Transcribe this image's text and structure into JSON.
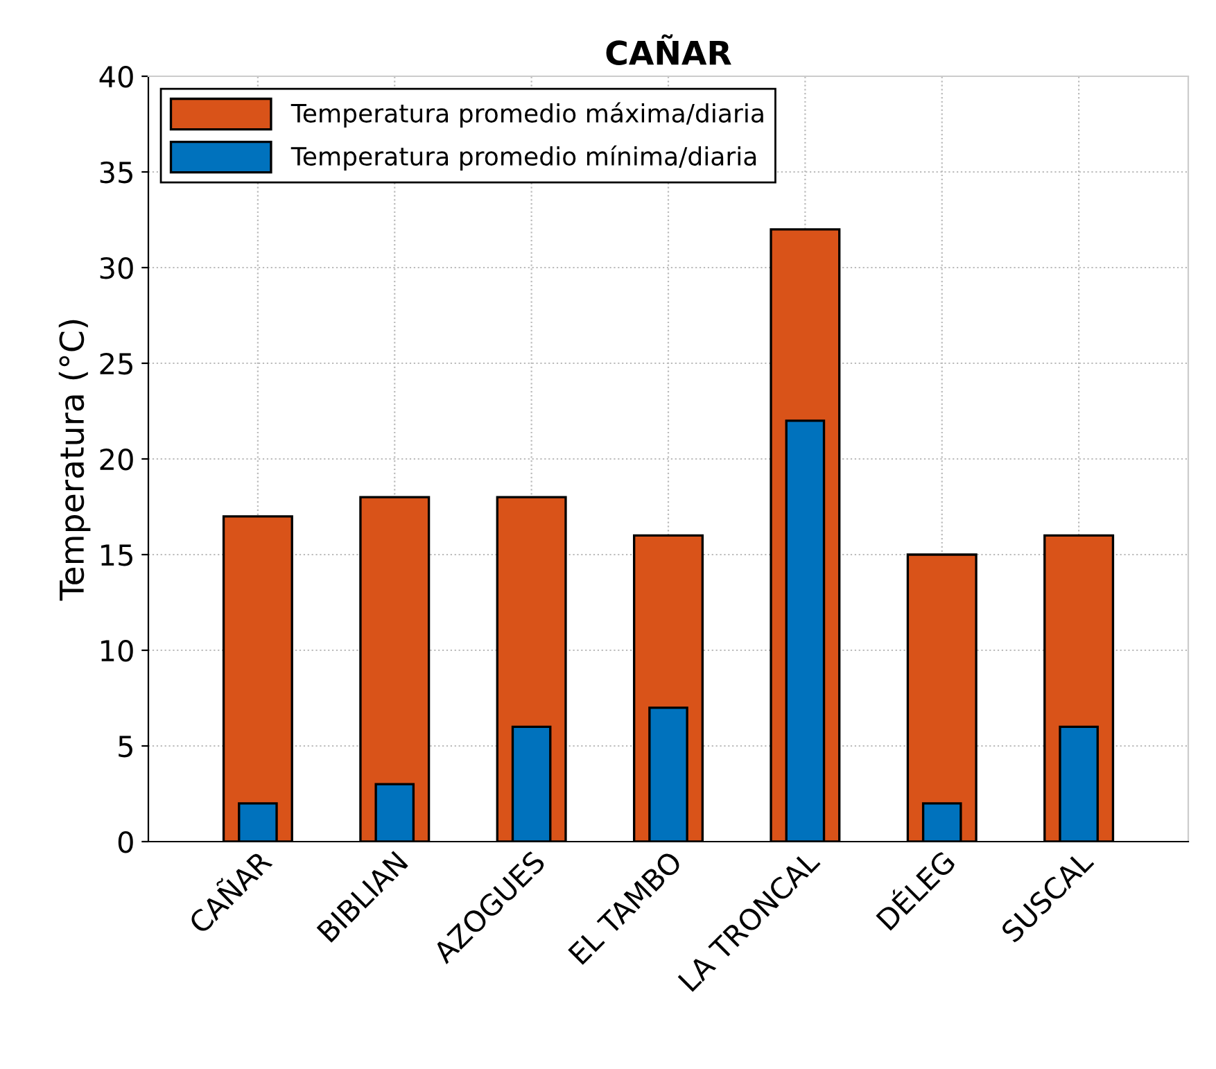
{
  "chart_data": {
    "type": "bar",
    "title": "CAÑAR",
    "ylabel": "Temperatura (°C)",
    "categories": [
      "CAÑAR",
      "BIBLIAN",
      "AZOGUES",
      "EL TAMBO",
      "LA TRONCAL",
      "DÉLEG",
      "SUSCAL"
    ],
    "series": [
      {
        "name": "Temperatura promedio máxima/diaria",
        "color": "#d95319",
        "values": [
          17,
          18,
          18,
          16,
          32,
          15,
          16
        ]
      },
      {
        "name": "Temperatura promedio mínima/diaria",
        "color": "#0072bd",
        "values": [
          2,
          3,
          6,
          7,
          22,
          2,
          6
        ]
      }
    ],
    "ylim": [
      0,
      40
    ],
    "yticks": [
      0,
      5,
      10,
      15,
      20,
      25,
      30,
      35,
      40
    ],
    "grid": true,
    "legend": "top left"
  }
}
